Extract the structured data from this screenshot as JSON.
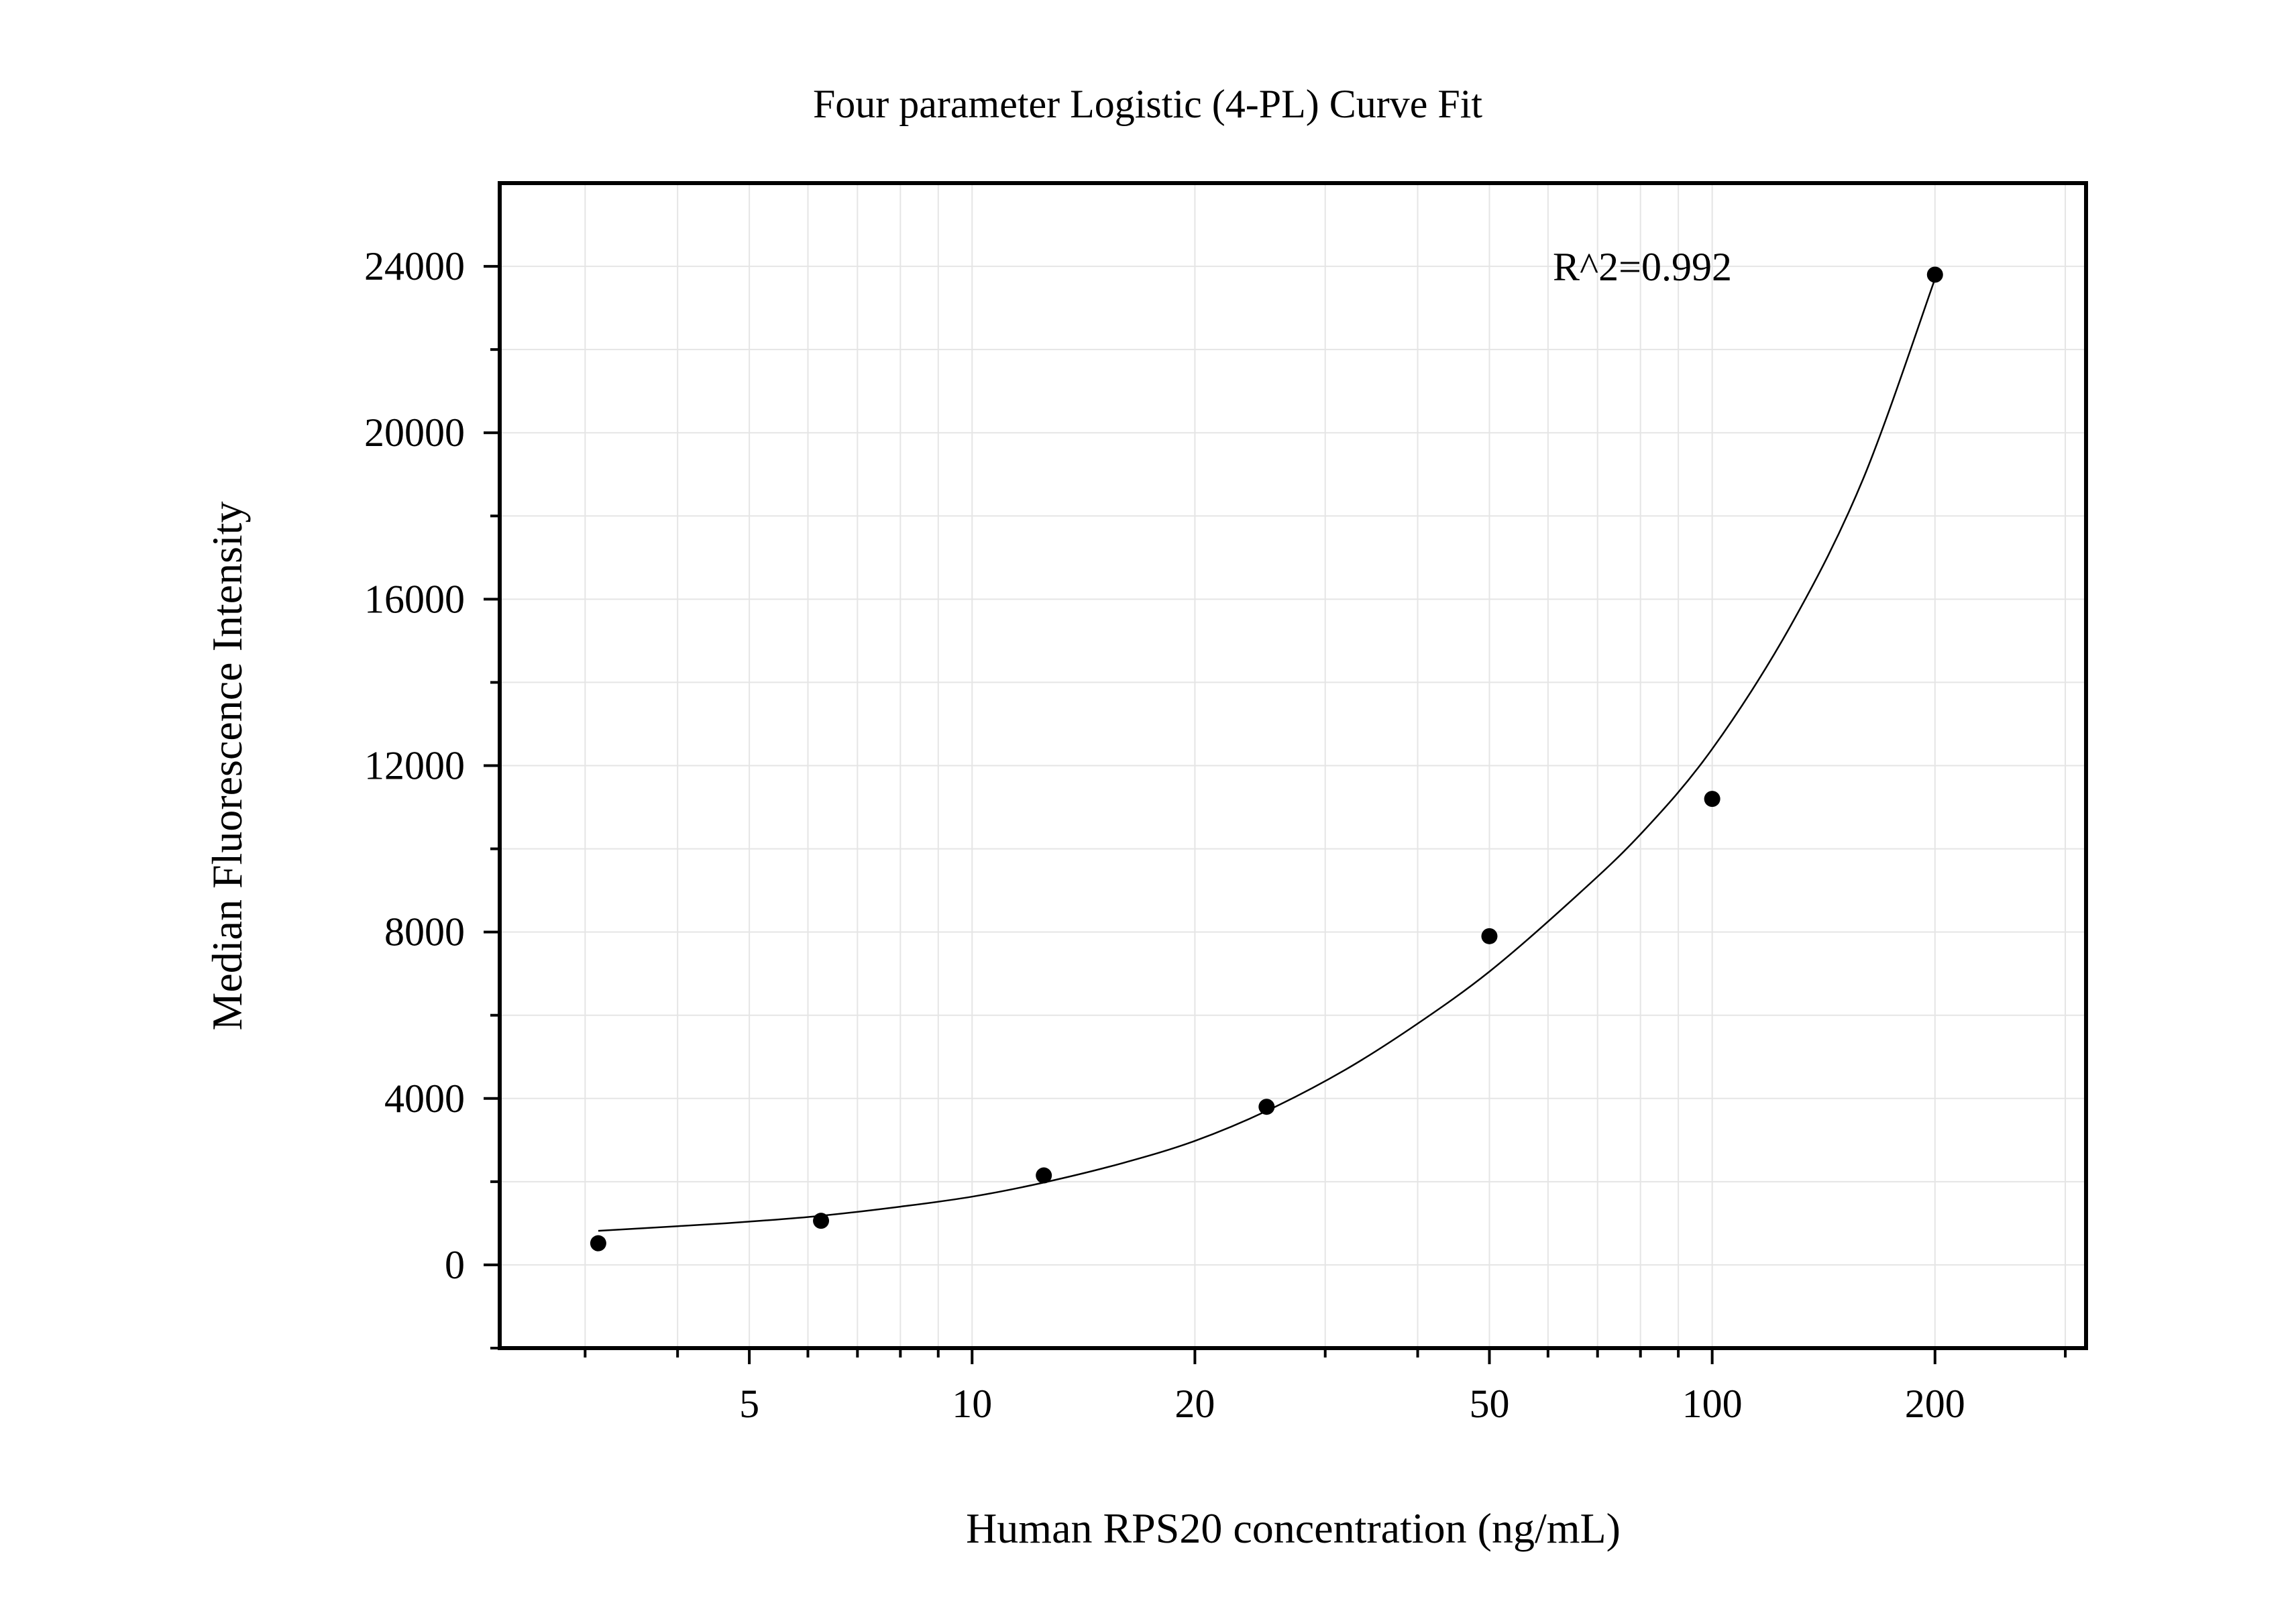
{
  "chart_data": {
    "type": "scatter",
    "title": "Four parameter Logistic (4-PL) Curve Fit",
    "xlabel": "Human RPS20 concentration (ng/mL)",
    "ylabel": "Median Fluorescence Intensity",
    "x_scale": "log",
    "xlim": [
      2.3,
      320
    ],
    "ylim": [
      -2000,
      26000
    ],
    "x_major_ticks": [
      5,
      10,
      20,
      50,
      100,
      200
    ],
    "x_minor_ticks": [
      3,
      4,
      6,
      7,
      8,
      9,
      30,
      40,
      60,
      70,
      80,
      90,
      300
    ],
    "y_major_ticks": [
      0,
      4000,
      8000,
      12000,
      16000,
      20000,
      24000
    ],
    "y_minor_ticks": [
      -2000,
      2000,
      6000,
      10000,
      14000,
      18000,
      22000
    ],
    "grid": true,
    "legend": "none",
    "annotation": "R^2=0.992",
    "series": [
      {
        "kind": "points",
        "x": [
          3.125,
          6.25,
          12.5,
          25,
          50,
          100,
          200
        ],
        "y": [
          520,
          1060,
          2150,
          3800,
          7900,
          11200,
          23800
        ]
      },
      {
        "kind": "fit-curve",
        "x": [
          3.125,
          4,
          5,
          6.25,
          8,
          10,
          12.5,
          16,
          20,
          25,
          32,
          40,
          50,
          64,
          80,
          100,
          128,
          160,
          200
        ],
        "y": [
          820,
          930,
          1040,
          1180,
          1400,
          1640,
          1980,
          2450,
          2980,
          3700,
          4700,
          5800,
          7050,
          8700,
          10350,
          12400,
          15400,
          18900,
          23700
        ]
      }
    ],
    "colors": {
      "points": "#000000",
      "curve": "#000000",
      "grid": "#e5e5e5",
      "frame": "#000000"
    }
  }
}
